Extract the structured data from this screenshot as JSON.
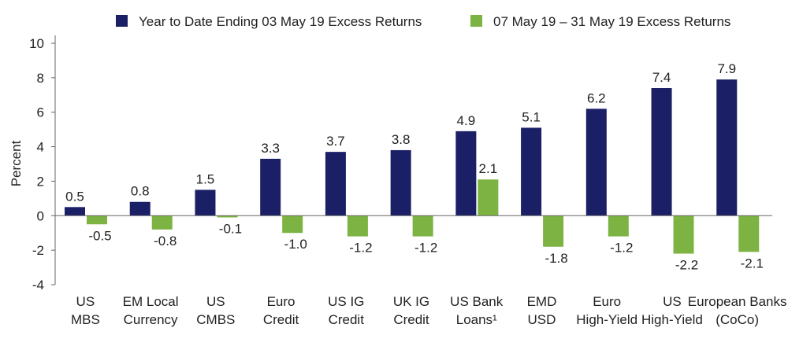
{
  "chart_data": {
    "type": "bar",
    "ylabel": "Percent",
    "ylim": [
      -4,
      10
    ],
    "yticks": [
      -4,
      -2,
      0,
      2,
      4,
      6,
      8,
      10
    ],
    "grid": false,
    "legend_position": "top",
    "categories": [
      [
        "US",
        "MBS"
      ],
      [
        "EM Local",
        "Currency"
      ],
      [
        "US",
        "CMBS"
      ],
      [
        "Euro",
        "Credit"
      ],
      [
        "US IG",
        "Credit"
      ],
      [
        "UK IG",
        "Credit"
      ],
      [
        "US Bank",
        "Loans¹"
      ],
      [
        "EMD",
        "USD"
      ],
      [
        "Euro",
        "High-Yield"
      ],
      [
        "US",
        "High-Yield"
      ],
      [
        "European Banks",
        "(CoCo)"
      ]
    ],
    "series": [
      {
        "name": "Year to Date Ending 03 May 19 Excess Returns",
        "color": "#1b1f66",
        "values": [
          0.5,
          0.8,
          1.5,
          3.3,
          3.7,
          3.8,
          4.9,
          5.1,
          6.2,
          7.4,
          7.9
        ],
        "labels": [
          "0.5",
          "0.8",
          "1.5",
          "3.3",
          "3.7",
          "3.8",
          "4.9",
          "5.1",
          "6.2",
          "7.4",
          "7.9"
        ]
      },
      {
        "name": "07 May 19 – 31 May 19 Excess Returns",
        "color": "#7cb342",
        "values": [
          -0.5,
          -0.8,
          -0.1,
          -1.0,
          -1.2,
          -1.2,
          2.1,
          -1.8,
          -1.2,
          -2.2,
          -2.1
        ],
        "labels": [
          "-0.5",
          "-0.8",
          "-0.1",
          "-1.0",
          "-1.2",
          "-1.2",
          "2.1",
          "-1.8",
          "-1.2",
          "-2.2",
          "-2.1"
        ]
      }
    ]
  }
}
